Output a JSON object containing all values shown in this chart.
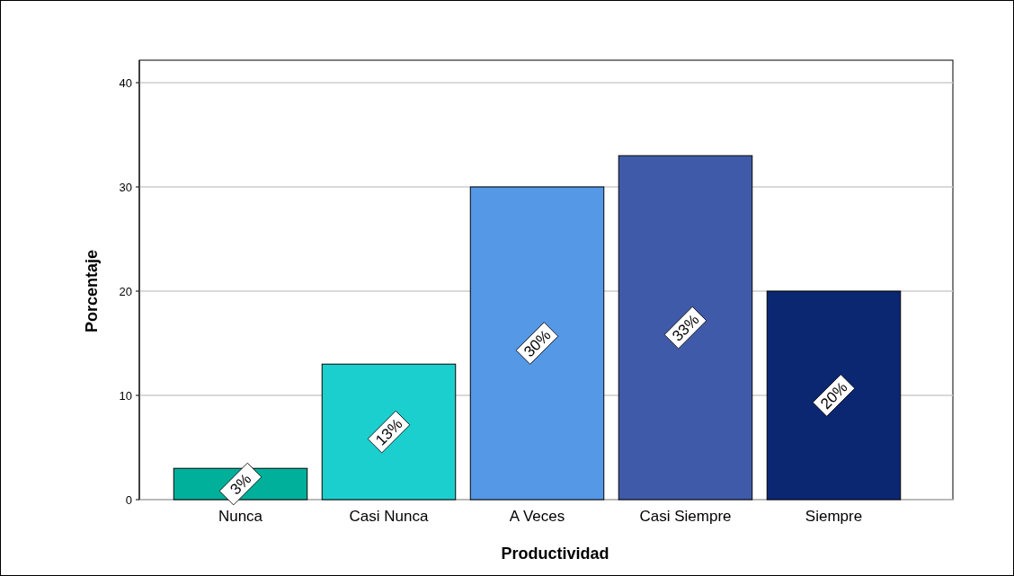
{
  "chart_data": {
    "type": "bar",
    "xlabel": "Productividad",
    "ylabel": "Porcentaje",
    "categories": [
      "Nunca",
      "Casi Nunca",
      "A Veces",
      "Casi Siempre",
      "Siempre"
    ],
    "values": [
      3,
      13,
      30,
      33,
      20
    ],
    "colors": [
      "#00b09a",
      "#1ccfcf",
      "#5598e6",
      "#3f5aa8",
      "#0b2772"
    ],
    "value_labels": [
      "3%",
      "13%",
      "30%",
      "33%",
      "20%"
    ],
    "ylim": [
      0,
      40
    ],
    "yticks": [
      0,
      10,
      20,
      30,
      40
    ],
    "grid": "y"
  }
}
